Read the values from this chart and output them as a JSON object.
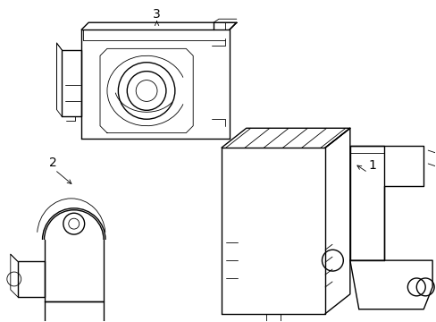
{
  "background_color": "#ffffff",
  "line_color": "#000000",
  "lw": 1.0,
  "tlw": 0.6,
  "fig_width": 4.89,
  "fig_height": 3.6,
  "dpi": 100,
  "label_fontsize": 10
}
